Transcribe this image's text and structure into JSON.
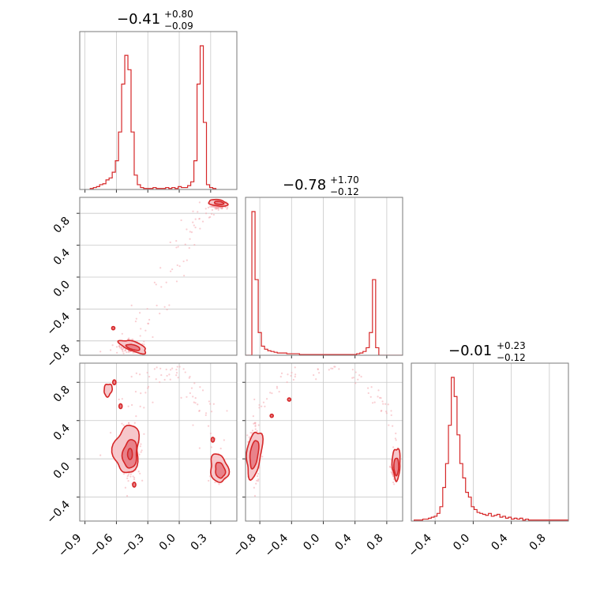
{
  "colors": {
    "series": "#d62728",
    "fill_inner": "#e8828a",
    "fill_outer": "#f6c7cb",
    "scatter": "#f4a6ad",
    "grid": "#c8c8c8",
    "frame": "#7a7a7a"
  },
  "chart_data": [
    {
      "type": "histogram",
      "panel": "p0-marginal",
      "title": {
        "median": "−0.41",
        "upper": "+0.80",
        "lower": "−0.09"
      },
      "xlim": [
        -0.95,
        0.55
      ],
      "xticks": [
        -0.9,
        -0.6,
        -0.3,
        0.0,
        0.3
      ],
      "bin_width": 0.03,
      "bin_start": -0.85,
      "counts": [
        1,
        2,
        3,
        5,
        6,
        10,
        12,
        18,
        30,
        60,
        110,
        140,
        125,
        60,
        15,
        5,
        2,
        1,
        1,
        1,
        2,
        1,
        1,
        1,
        2,
        1,
        2,
        1,
        3,
        2,
        2,
        4,
        8,
        30,
        110,
        150,
        70,
        5,
        2,
        1
      ]
    },
    {
      "type": "scatter-contour",
      "panel": "p0-vs-p1",
      "xlim": [
        -0.95,
        0.55
      ],
      "ylim": [
        -0.98,
        1.0
      ],
      "yticks": [
        -0.8,
        -0.4,
        0.0,
        0.4,
        0.8
      ],
      "yticklabels": [
        "−0.8",
        "−0.4",
        "0.0",
        "0.4",
        "0.8"
      ]
    },
    {
      "type": "histogram",
      "panel": "p1-marginal",
      "title": {
        "median": "−0.78",
        "upper": "+1.70",
        "lower": "−0.12"
      },
      "xlim": [
        -0.98,
        1.0
      ],
      "bin_width": 0.04,
      "bin_start": -0.98,
      "counts": [
        0,
        0,
        190,
        100,
        30,
        12,
        8,
        6,
        5,
        4,
        3,
        3,
        3,
        2,
        2,
        2,
        2,
        1,
        1,
        1,
        1,
        1,
        1,
        1,
        1,
        1,
        1,
        1,
        1,
        1,
        1,
        1,
        1,
        1,
        1,
        2,
        3,
        5,
        10,
        30,
        100,
        10,
        0,
        0,
        0,
        0,
        0,
        0,
        0,
        0
      ]
    },
    {
      "type": "scatter-contour",
      "panel": "p0-vs-p2",
      "xlim": [
        -0.95,
        0.55
      ],
      "ylim": [
        -0.65,
        1.0
      ],
      "xticks": [
        -0.9,
        -0.6,
        -0.3,
        0.0,
        0.3
      ],
      "xticklabels": [
        "−0.9",
        "−0.6",
        "−0.3",
        "0.0",
        "0.3"
      ],
      "yticks": [
        -0.4,
        0.0,
        0.4,
        0.8
      ],
      "yticklabels": [
        "−0.4",
        "0.0",
        "0.4",
        "0.8"
      ]
    },
    {
      "type": "scatter-contour",
      "panel": "p1-vs-p2",
      "xlim": [
        -0.98,
        1.0
      ],
      "ylim": [
        -0.65,
        1.0
      ],
      "xticks": [
        -0.8,
        -0.4,
        0.0,
        0.4,
        0.8
      ],
      "xticklabels": [
        "−0.8",
        "−0.4",
        "0.0",
        "0.4",
        "0.8"
      ]
    },
    {
      "type": "histogram",
      "panel": "p2-marginal",
      "title": {
        "median": "−0.01",
        "upper": "+0.23",
        "lower": "−0.12"
      },
      "xlim": [
        -0.65,
        1.0
      ],
      "xticks": [
        -0.4,
        0.0,
        0.4,
        0.8
      ],
      "xticklabels": [
        "−0.4",
        "0.0",
        "0.4",
        "0.8"
      ],
      "bin_width": 0.03,
      "bin_start": -0.62,
      "counts": [
        1,
        1,
        1,
        2,
        2,
        3,
        4,
        5,
        8,
        15,
        35,
        60,
        100,
        150,
        130,
        90,
        60,
        45,
        30,
        25,
        15,
        12,
        9,
        8,
        7,
        6,
        8,
        5,
        6,
        7,
        4,
        5,
        3,
        4,
        2,
        3,
        2,
        3,
        1,
        2,
        1,
        1,
        1,
        1,
        1,
        1,
        1,
        1,
        1,
        1,
        1,
        1,
        1,
        1,
        1
      ]
    }
  ]
}
